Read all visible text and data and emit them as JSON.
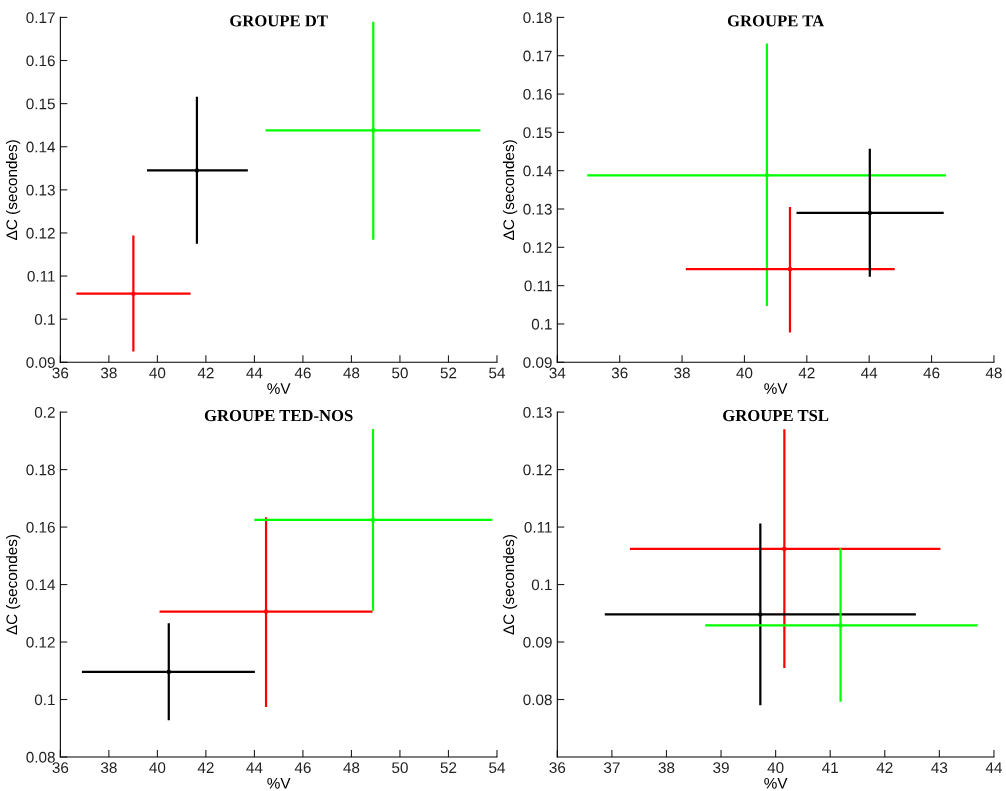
{
  "chart_data": [
    {
      "type": "scatter",
      "title": "GROUPE DT",
      "xlabel": "%V",
      "ylabel": "ΔC (secondes)",
      "grid": false,
      "xlim": [
        36,
        54
      ],
      "xticks": [
        36,
        38,
        40,
        42,
        44,
        46,
        48,
        50,
        52,
        54
      ],
      "ylim": [
        0.09,
        0.17
      ],
      "yticks": [
        0.09,
        0.1,
        0.11,
        0.12,
        0.13,
        0.14,
        0.15,
        0.16,
        0.17
      ],
      "series": [
        {
          "color": "#ff0000",
          "x": [
            39.01
          ],
          "values": [
            0.1059
          ],
          "xerrors": [
            [
              36.66,
              41.37
            ]
          ],
          "errors": [
            [
              0.0925,
              0.1194
            ]
          ]
        },
        {
          "color": "#000000",
          "x": [
            41.63
          ],
          "values": [
            0.1345
          ],
          "xerrors": [
            [
              39.57,
              43.73
            ]
          ],
          "errors": [
            [
              0.1175,
              0.1516
            ]
          ]
        },
        {
          "color": "#00ff00",
          "x": [
            48.9
          ],
          "values": [
            0.1438
          ],
          "xerrors": [
            [
              44.46,
              53.32
            ]
          ],
          "errors": [
            [
              0.1184,
              0.169
            ]
          ]
        }
      ]
    },
    {
      "type": "scatter",
      "title": "GROUPE TA",
      "xlabel": "%V",
      "ylabel": "ΔC (secondes)",
      "grid": false,
      "xlim": [
        34,
        48
      ],
      "xticks": [
        34,
        36,
        38,
        40,
        42,
        44,
        46,
        48
      ],
      "ylim": [
        0.09,
        0.18
      ],
      "yticks": [
        0.09,
        0.1,
        0.11,
        0.12,
        0.13,
        0.14,
        0.15,
        0.16,
        0.17,
        0.18
      ],
      "series": [
        {
          "color": "#00ff00",
          "x": [
            40.72
          ],
          "values": [
            0.1388
          ],
          "xerrors": [
            [
              34.96,
              46.46
            ]
          ],
          "errors": [
            [
              0.1047,
              0.1732
            ]
          ]
        },
        {
          "color": "#ff0000",
          "x": [
            41.46
          ],
          "values": [
            0.1143
          ],
          "xerrors": [
            [
              38.12,
              44.82
            ]
          ],
          "errors": [
            [
              0.0978,
              0.1305
            ]
          ]
        },
        {
          "color": "#000000",
          "x": [
            44.02
          ],
          "values": [
            0.129
          ],
          "xerrors": [
            [
              41.67,
              46.39
            ]
          ],
          "errors": [
            [
              0.1123,
              0.1457
            ]
          ]
        }
      ]
    },
    {
      "type": "scatter",
      "title": "GROUPE TED-NOS",
      "xlabel": "%V",
      "ylabel": "ΔC (secondes)",
      "grid": false,
      "xlim": [
        36,
        54
      ],
      "xticks": [
        36,
        38,
        40,
        42,
        44,
        46,
        48,
        50,
        52,
        54
      ],
      "ylim": [
        0.08,
        0.2
      ],
      "yticks": [
        0.08,
        0.1,
        0.12,
        0.14,
        0.16,
        0.18,
        0.2
      ],
      "series": [
        {
          "color": "#000000",
          "x": [
            40.47
          ],
          "values": [
            0.1096
          ],
          "xerrors": [
            [
              36.89,
              44.02
            ]
          ],
          "errors": [
            [
              0.0928,
              0.1265
            ]
          ]
        },
        {
          "color": "#ff0000",
          "x": [
            44.48
          ],
          "values": [
            0.1306
          ],
          "xerrors": [
            [
              40.09,
              48.87
            ]
          ],
          "errors": [
            [
              0.0974,
              0.1634
            ]
          ]
        },
        {
          "color": "#00ff00",
          "x": [
            48.89
          ],
          "values": [
            0.1625
          ],
          "xerrors": [
            [
              44.0,
              53.81
            ]
          ],
          "errors": [
            [
              0.1309,
              0.1941
            ]
          ]
        }
      ]
    },
    {
      "type": "scatter",
      "title": "GROUPE TSL",
      "xlabel": "%V",
      "ylabel": "ΔC (secondes)",
      "grid": false,
      "xlim": [
        36,
        44
      ],
      "xticks": [
        36,
        37,
        38,
        39,
        40,
        41,
        42,
        43,
        44
      ],
      "ylim": [
        0.07,
        0.13
      ],
      "yticks": [
        0.08,
        0.09,
        0.1,
        0.11,
        0.12,
        0.13
      ],
      "series": [
        {
          "color": "#ff0000",
          "x": [
            40.16
          ],
          "values": [
            0.1062
          ],
          "xerrors": [
            [
              37.33,
              43.02
            ]
          ],
          "errors": [
            [
              0.0855,
              0.127
            ]
          ]
        },
        {
          "color": "#000000",
          "x": [
            39.72
          ],
          "values": [
            0.0948
          ],
          "xerrors": [
            [
              36.87,
              42.57
            ]
          ],
          "errors": [
            [
              0.079,
              0.1106
            ]
          ]
        },
        {
          "color": "#00ff00",
          "x": [
            41.19
          ],
          "values": [
            0.0929
          ],
          "xerrors": [
            [
              38.71,
              43.7
            ]
          ],
          "errors": [
            [
              0.0796,
              0.1063
            ]
          ]
        }
      ]
    }
  ]
}
